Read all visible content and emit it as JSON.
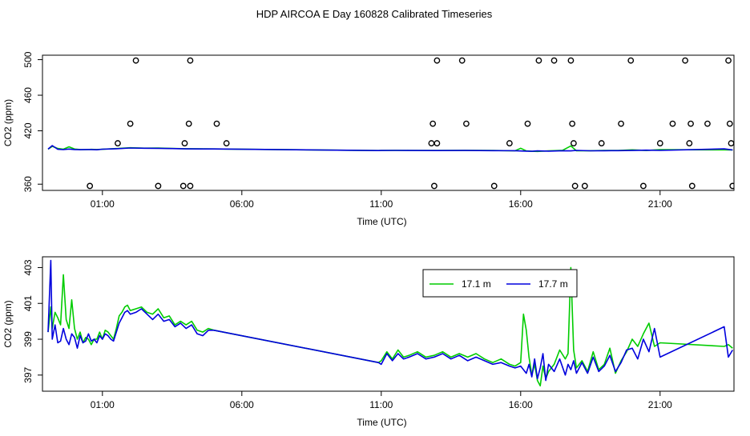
{
  "title": "HDP AIRCOA E  Day 160828  Calibrated Timeseries",
  "colors": {
    "series_a": "#00cc00",
    "series_b": "#0000dd",
    "axis": "#000000",
    "points": "#000000"
  },
  "chart_data": [
    {
      "type": "line",
      "panel": "top",
      "xlabel": "Time (UTC)",
      "ylabel": "CO2 (ppm)",
      "x_unit": "hours UTC",
      "xlim": [
        -1.15,
        23.65
      ],
      "ylim": [
        353,
        505
      ],
      "xticks": [
        1,
        6,
        11,
        16,
        21
      ],
      "xtick_labels": [
        "01:00",
        "06:00",
        "11:00",
        "16:00",
        "21:00"
      ],
      "yticks": [
        360,
        420,
        460,
        500
      ],
      "grid": false,
      "scatter_points": {
        "marker": "open-circle",
        "x": [
          0.55,
          1.55,
          2.0,
          2.2,
          3.9,
          3.95,
          4.1,
          4.15,
          5.1,
          3.0,
          4.15,
          5.45,
          12.8,
          12.9,
          13.0,
          14.05,
          13.0,
          12.85,
          13.9,
          15.05,
          15.6,
          16.25,
          16.65,
          17.2,
          17.8,
          17.85,
          17.9,
          17.95,
          18.3,
          18.9,
          19.6,
          19.95,
          20.4,
          21.0,
          21.45,
          21.9,
          22.05,
          22.1,
          22.15,
          22.7,
          23.45,
          23.5,
          23.55,
          23.6
        ],
        "y": [
          358,
          406,
          428,
          499,
          358,
          406,
          428,
          499,
          428,
          358,
          358,
          406,
          406,
          358,
          406,
          428,
          499,
          428,
          499,
          358,
          406,
          428,
          499,
          499,
          499,
          428,
          406,
          358,
          358,
          406,
          428,
          499,
          358,
          406,
          428,
          499,
          406,
          428,
          358,
          428,
          499,
          428,
          406,
          358
        ]
      },
      "series": [
        {
          "name": "17.1 m",
          "x": [
            -0.95,
            -0.8,
            -0.6,
            -0.4,
            -0.2,
            0.0,
            0.2,
            0.4,
            0.6,
            0.8,
            1.0,
            1.5,
            2.0,
            2.5,
            3.0,
            3.5,
            4.0,
            4.6,
            5.0,
            10.9,
            11.0,
            11.5,
            12.0,
            13.0,
            14.0,
            15.0,
            15.8,
            16.0,
            16.2,
            16.4,
            16.6,
            17.0,
            17.5,
            17.8,
            18.0,
            18.5,
            19.0,
            19.5,
            20.0,
            20.5,
            21.0,
            23.3,
            23.6
          ],
          "y": [
            399.4,
            402.6,
            400.1,
            399.3,
            402.0,
            399.5,
            399.0,
            398.9,
            399.1,
            399.0,
            399.2,
            400.0,
            400.9,
            400.5,
            400.6,
            400.1,
            399.9,
            399.7,
            399.6,
            397.8,
            398.0,
            398.1,
            398.0,
            397.9,
            398.1,
            397.9,
            397.5,
            400.4,
            397.4,
            397.0,
            396.8,
            397.4,
            398.1,
            403.0,
            397.5,
            397.6,
            398.0,
            397.9,
            398.6,
            397.9,
            398.8,
            398.6,
            398.5
          ]
        },
        {
          "name": "17.7 m",
          "x": [
            -0.95,
            -0.8,
            -0.6,
            -0.4,
            -0.2,
            0.0,
            0.2,
            0.4,
            0.6,
            0.8,
            1.0,
            1.5,
            2.0,
            2.5,
            3.0,
            3.5,
            4.0,
            4.6,
            5.0,
            10.9,
            11.0,
            11.5,
            12.0,
            13.0,
            14.0,
            15.0,
            15.8,
            16.0,
            16.2,
            16.4,
            16.6,
            17.0,
            17.5,
            17.8,
            18.0,
            18.5,
            19.0,
            19.5,
            20.0,
            20.5,
            21.0,
            23.3,
            23.6
          ],
          "y": [
            399.4,
            403.4,
            399.2,
            398.9,
            399.5,
            399.0,
            398.8,
            399.0,
            399.0,
            398.7,
            399.3,
            399.9,
            400.7,
            400.4,
            400.3,
            400.0,
            399.7,
            399.6,
            399.6,
            397.8,
            397.9,
            398.0,
            397.9,
            397.8,
            397.9,
            397.7,
            397.6,
            397.3,
            397.2,
            397.0,
            397.4,
            397.2,
            397.6,
            397.4,
            398.0,
            397.5,
            397.6,
            397.7,
            397.9,
            398.2,
            398.0,
            399.7,
            398.5
          ]
        }
      ]
    },
    {
      "type": "line",
      "panel": "bottom",
      "xlabel": "Time (UTC)",
      "ylabel": "CO2 (ppm)",
      "x_unit": "hours UTC",
      "xlim": [
        -1.15,
        23.65
      ],
      "ylim": [
        396.1,
        403.6
      ],
      "xticks": [
        1,
        6,
        11,
        16,
        21
      ],
      "xtick_labels": [
        "01:00",
        "06:00",
        "11:00",
        "16:00",
        "21:00"
      ],
      "yticks": [
        397,
        399,
        401,
        403
      ],
      "grid": false,
      "legend": {
        "placement": "top-right",
        "entries": [
          "17.1 m",
          "17.7 m"
        ]
      },
      "series": [
        {
          "name": "17.1 m",
          "x": [
            -0.95,
            -0.85,
            -0.8,
            -0.7,
            -0.6,
            -0.5,
            -0.4,
            -0.3,
            -0.2,
            -0.1,
            0.0,
            0.1,
            0.2,
            0.3,
            0.4,
            0.5,
            0.6,
            0.7,
            0.8,
            0.9,
            1.0,
            1.1,
            1.2,
            1.3,
            1.4,
            1.5,
            1.6,
            1.7,
            1.8,
            1.9,
            2.0,
            2.2,
            2.4,
            2.6,
            2.8,
            3.0,
            3.2,
            3.4,
            3.6,
            3.8,
            4.0,
            4.2,
            4.4,
            4.6,
            4.8,
            5.0,
            10.9,
            11.0,
            11.2,
            11.4,
            11.6,
            11.8,
            12.0,
            12.3,
            12.6,
            12.9,
            13.2,
            13.5,
            13.8,
            14.1,
            14.4,
            14.7,
            15.0,
            15.3,
            15.6,
            15.8,
            16.0,
            16.1,
            16.2,
            16.3,
            16.4,
            16.5,
            16.6,
            16.7,
            16.8,
            16.9,
            17.0,
            17.2,
            17.4,
            17.6,
            17.7,
            17.8,
            17.9,
            18.0,
            18.2,
            18.4,
            18.6,
            18.8,
            19.0,
            19.2,
            19.4,
            19.6,
            19.8,
            20.0,
            20.2,
            20.4,
            20.6,
            20.8,
            21.0,
            23.3,
            23.45,
            23.6
          ],
          "y": [
            399.4,
            400.8,
            399.6,
            400.5,
            400.2,
            399.8,
            402.6,
            400.1,
            399.6,
            401.2,
            399.6,
            399.0,
            399.4,
            398.8,
            399.1,
            399.0,
            398.7,
            399.0,
            399.0,
            399.4,
            399.0,
            399.5,
            399.4,
            399.2,
            399.0,
            399.6,
            400.3,
            400.5,
            400.8,
            400.9,
            400.6,
            400.7,
            400.8,
            400.5,
            400.4,
            400.7,
            400.2,
            400.3,
            399.8,
            400.0,
            399.8,
            400.0,
            399.5,
            399.4,
            399.6,
            399.5,
            397.7,
            397.8,
            398.3,
            397.9,
            398.4,
            398.0,
            398.1,
            398.3,
            398.0,
            398.1,
            398.3,
            398.0,
            398.2,
            398.0,
            398.2,
            397.9,
            397.7,
            397.9,
            397.6,
            397.5,
            397.7,
            400.4,
            399.5,
            398.0,
            397.0,
            397.6,
            396.7,
            396.4,
            397.5,
            396.8,
            397.2,
            397.6,
            398.4,
            397.9,
            398.2,
            403.0,
            398.4,
            397.4,
            397.8,
            397.2,
            398.3,
            397.3,
            397.6,
            398.5,
            397.1,
            397.8,
            398.3,
            399.0,
            398.6,
            399.3,
            399.9,
            398.6,
            398.8,
            398.6,
            398.7,
            398.5
          ]
        },
        {
          "name": "17.7 m",
          "x": [
            -0.95,
            -0.85,
            -0.8,
            -0.7,
            -0.6,
            -0.5,
            -0.4,
            -0.3,
            -0.2,
            -0.1,
            0.0,
            0.1,
            0.2,
            0.3,
            0.4,
            0.5,
            0.6,
            0.7,
            0.8,
            0.9,
            1.0,
            1.1,
            1.2,
            1.3,
            1.4,
            1.5,
            1.6,
            1.7,
            1.8,
            1.9,
            2.0,
            2.2,
            2.4,
            2.6,
            2.8,
            3.0,
            3.2,
            3.4,
            3.6,
            3.8,
            4.0,
            4.2,
            4.4,
            4.6,
            4.8,
            5.0,
            10.9,
            11.0,
            11.2,
            11.4,
            11.6,
            11.8,
            12.0,
            12.3,
            12.6,
            12.9,
            13.2,
            13.5,
            13.8,
            14.1,
            14.4,
            14.7,
            15.0,
            15.3,
            15.6,
            15.8,
            16.0,
            16.1,
            16.2,
            16.3,
            16.4,
            16.5,
            16.6,
            16.7,
            16.8,
            16.9,
            17.0,
            17.2,
            17.4,
            17.6,
            17.7,
            17.8,
            17.9,
            18.0,
            18.2,
            18.4,
            18.6,
            18.8,
            19.0,
            19.2,
            19.4,
            19.6,
            19.8,
            20.0,
            20.2,
            20.4,
            20.6,
            20.8,
            21.0,
            23.3,
            23.45,
            23.6
          ],
          "y": [
            399.4,
            403.4,
            399.0,
            399.8,
            398.8,
            398.9,
            399.6,
            399.0,
            398.7,
            399.3,
            399.1,
            398.5,
            399.2,
            398.8,
            398.9,
            399.3,
            398.9,
            399.0,
            398.8,
            399.2,
            399.0,
            399.3,
            399.2,
            399.0,
            398.9,
            399.4,
            399.9,
            400.2,
            400.5,
            400.6,
            400.4,
            400.5,
            400.7,
            400.4,
            400.1,
            400.4,
            400.0,
            400.1,
            399.7,
            399.9,
            399.6,
            399.8,
            399.3,
            399.2,
            399.5,
            399.5,
            397.7,
            397.6,
            398.2,
            397.8,
            398.2,
            397.9,
            398.0,
            398.2,
            397.9,
            398.0,
            398.2,
            397.9,
            398.1,
            397.8,
            398.0,
            397.8,
            397.6,
            397.7,
            397.5,
            397.4,
            397.5,
            397.3,
            397.1,
            397.6,
            396.9,
            397.9,
            396.8,
            397.4,
            398.2,
            396.7,
            397.6,
            397.2,
            397.9,
            397.0,
            397.6,
            397.3,
            397.8,
            397.1,
            397.7,
            397.1,
            398.0,
            397.2,
            397.5,
            398.1,
            397.2,
            397.7,
            398.4,
            398.5,
            397.9,
            399.0,
            398.3,
            399.6,
            398.0,
            399.7,
            398.0,
            398.4
          ]
        }
      ]
    }
  ]
}
